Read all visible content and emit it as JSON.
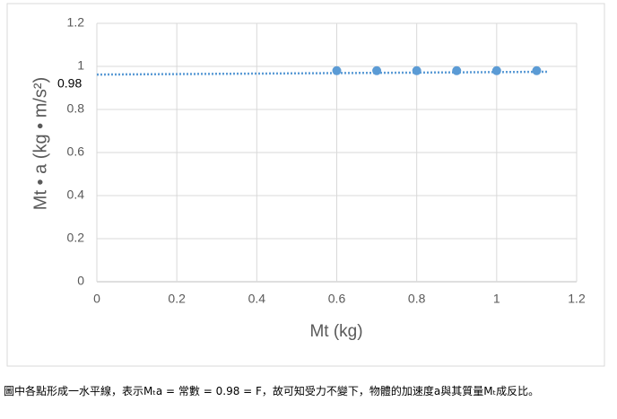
{
  "chart_data": {
    "type": "scatter",
    "x_label": "Mt (kg)",
    "y_label": "Mt • a (kg • m/s²)",
    "x": [
      0.6,
      0.7,
      0.8,
      0.9,
      1.0,
      1.1
    ],
    "values": [
      0.98,
      0.98,
      0.98,
      0.98,
      0.98,
      0.98
    ],
    "color": "#5b9bd5",
    "trendline": {
      "x": [
        0,
        1.13
      ],
      "values": [
        0.962,
        0.975
      ]
    },
    "annotation": "0.98",
    "xlim": [
      0,
      1.2
    ],
    "xticks": [
      0,
      0.2,
      0.4,
      0.6,
      0.8,
      1,
      1.2
    ],
    "ylim": [
      0,
      1.2
    ],
    "yticks": [
      0,
      0.2,
      0.4,
      0.6,
      0.8,
      1,
      1.2
    ],
    "grid": true
  },
  "caption": "圖中各點形成一水平線，表示Mₜa = 常數 = 0.98 = F，故可知受力不變下，物體的加速度a與其質量Mₜ成反比。"
}
